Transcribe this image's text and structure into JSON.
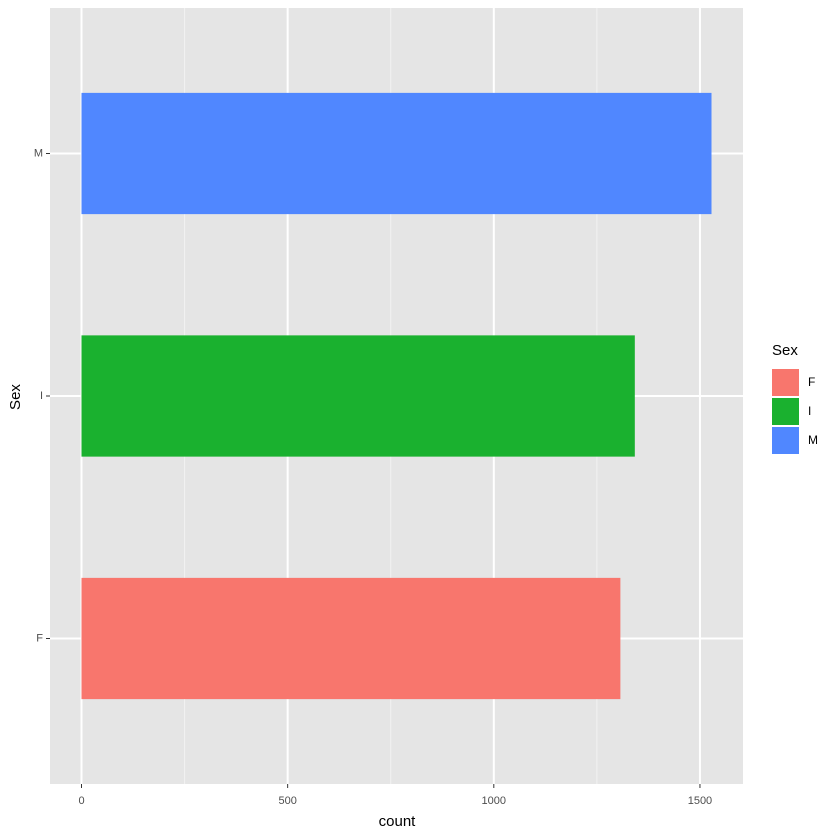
{
  "chart_data": {
    "type": "bar",
    "orientation": "horizontal",
    "x_label": "count",
    "y_label": "Sex",
    "legend_title": "Sex",
    "categories": [
      "F",
      "I",
      "M"
    ],
    "values": [
      1307,
      1342,
      1528
    ],
    "colors": [
      "#f8766d",
      "#1ab12f",
      "#5087ff"
    ],
    "xlim": [
      -76.4,
      1604.4
    ],
    "xticks": [
      0,
      500,
      1000,
      1500
    ],
    "grid": true
  }
}
